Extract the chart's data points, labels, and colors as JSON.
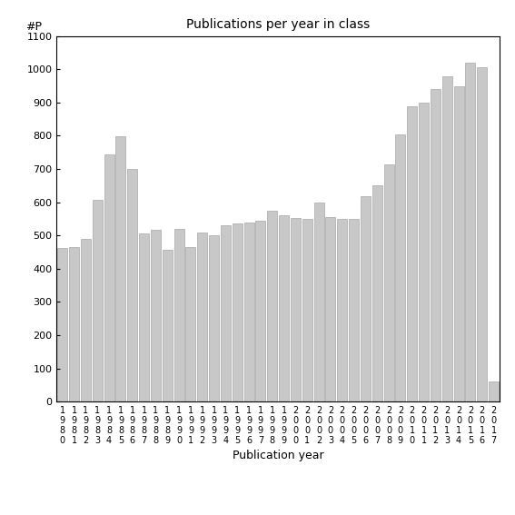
{
  "title": "Publications per year in class",
  "xlabel": "Publication year",
  "ylabel": "#P",
  "ylim": [
    0,
    1100
  ],
  "yticks": [
    0,
    100,
    200,
    300,
    400,
    500,
    600,
    700,
    800,
    900,
    1000,
    1100
  ],
  "bar_color": "#c8c8c8",
  "edge_color": "#999999",
  "background_color": "#ffffff",
  "categories": [
    "1980",
    "1981",
    "1982",
    "1983",
    "1984",
    "1985",
    "1986",
    "1987",
    "1988",
    "1989",
    "1990",
    "1991",
    "1992",
    "1993",
    "1994",
    "1995",
    "1996",
    "1997",
    "1998",
    "1999",
    "2000",
    "2001",
    "2002",
    "2003",
    "2004",
    "2005",
    "2006",
    "2007",
    "2008",
    "2009",
    "2010",
    "2011",
    "2012",
    "2013",
    "2014",
    "2015",
    "2016",
    "2017"
  ],
  "values": [
    462,
    465,
    490,
    608,
    745,
    798,
    700,
    507,
    517,
    457,
    520,
    465,
    510,
    500,
    530,
    535,
    540,
    545,
    575,
    560,
    553,
    550,
    598,
    555,
    549,
    550,
    618,
    650,
    713,
    805,
    888,
    900,
    940,
    980,
    948,
    1020,
    1005,
    60
  ]
}
